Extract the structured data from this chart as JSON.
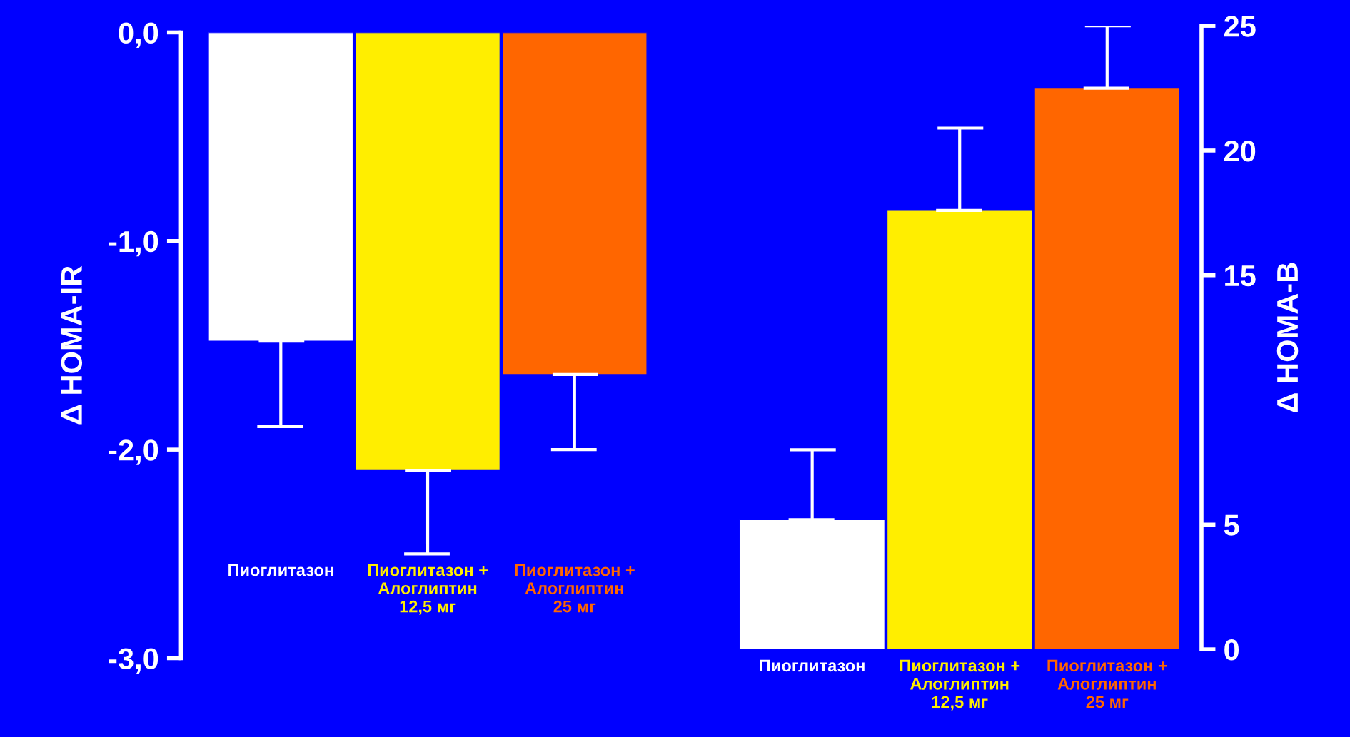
{
  "chart_data": [
    {
      "type": "bar",
      "ylabel": "Δ HOMA-IR",
      "categories": [
        "Пиоглитазон",
        "Пиоглитазон +\nАлоглиптин\n12,5 мг",
        "Пиоглитазон +\nАлоглиптин\n25 мг"
      ],
      "values": [
        -1.48,
        -2.1,
        -1.64
      ],
      "colors": [
        "#ffffff",
        "#ffee00",
        "#ff6600"
      ],
      "errors": [
        [
          -1.89,
          -1.48
        ],
        [
          -2.5,
          -2.1
        ],
        [
          -2.0,
          -1.64
        ]
      ],
      "ylim": [
        -3,
        0
      ],
      "yticks": [
        {
          "value": -3,
          "label": "-3,0"
        },
        {
          "value": -2,
          "label": "-2,0"
        },
        {
          "value": -1,
          "label": "-1,0"
        },
        {
          "value": 0,
          "label": "0,0"
        }
      ],
      "grid": false
    },
    {
      "type": "bar",
      "ylabel": "Δ HOMA-B",
      "categories": [
        "Пиоглитазон",
        "Пиоглитазон +\nАлоглиптин\n12,5 мг",
        "Пиоглитазон +\nАлоглиптин\n25 мг"
      ],
      "values": [
        5.2,
        17.6,
        22.5
      ],
      "colors": [
        "#ffffff",
        "#ffee00",
        "#ff6600"
      ],
      "errors": [
        [
          5.2,
          8.0
        ],
        [
          17.6,
          20.9
        ],
        [
          22.5,
          25.0
        ]
      ],
      "ylim": [
        0,
        25
      ],
      "yticks": [
        0,
        5,
        15,
        20,
        25
      ],
      "grid": false
    }
  ]
}
